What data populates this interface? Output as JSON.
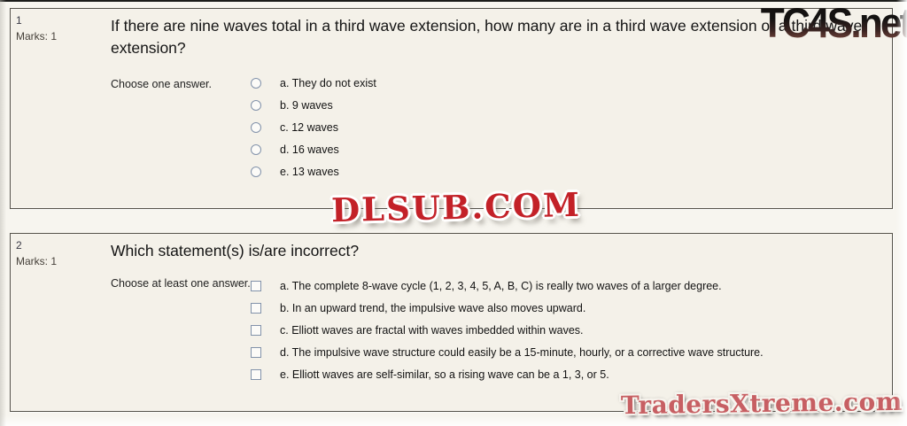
{
  "page": {
    "background": "#f4f1e9",
    "border_color": "#55524a",
    "accent_red": "#c32128",
    "accent_pink_red": "#c75f63"
  },
  "watermarks": {
    "top_right": "TC4S.net",
    "center": "DLSUB.COM",
    "bottom_right": "TradersXtreme.com"
  },
  "questions": [
    {
      "number": "1",
      "marks_label": "Marks: 1",
      "text": "If there are nine waves total in a third wave extension, how many are in a third wave extension of a third wave extension?",
      "prompt": "Choose one answer.",
      "input_type": "radio",
      "options": [
        {
          "label": "a. They do not exist"
        },
        {
          "label": "b. 9 waves"
        },
        {
          "label": "c. 12 waves"
        },
        {
          "label": "d. 16 waves"
        },
        {
          "label": "e. 13 waves"
        }
      ]
    },
    {
      "number": "2",
      "marks_label": "Marks: 1",
      "text": "Which statement(s) is/are incorrect?",
      "prompt": "Choose at least one answer.",
      "input_type": "checkbox",
      "options": [
        {
          "label": "a. The complete 8-wave cycle (1, 2, 3, 4, 5, A, B, C) is really two waves of a larger degree."
        },
        {
          "label": "b. In an upward trend, the impulsive wave also moves upward."
        },
        {
          "label": "c. Elliott waves are fractal with waves imbedded within waves."
        },
        {
          "label": "d. The impulsive wave structure could easily be a 15-minute, hourly, or a corrective wave structure."
        },
        {
          "label": "e. Elliott waves are self-similar, so a rising wave can be a 1, 3, or 5."
        }
      ]
    }
  ]
}
